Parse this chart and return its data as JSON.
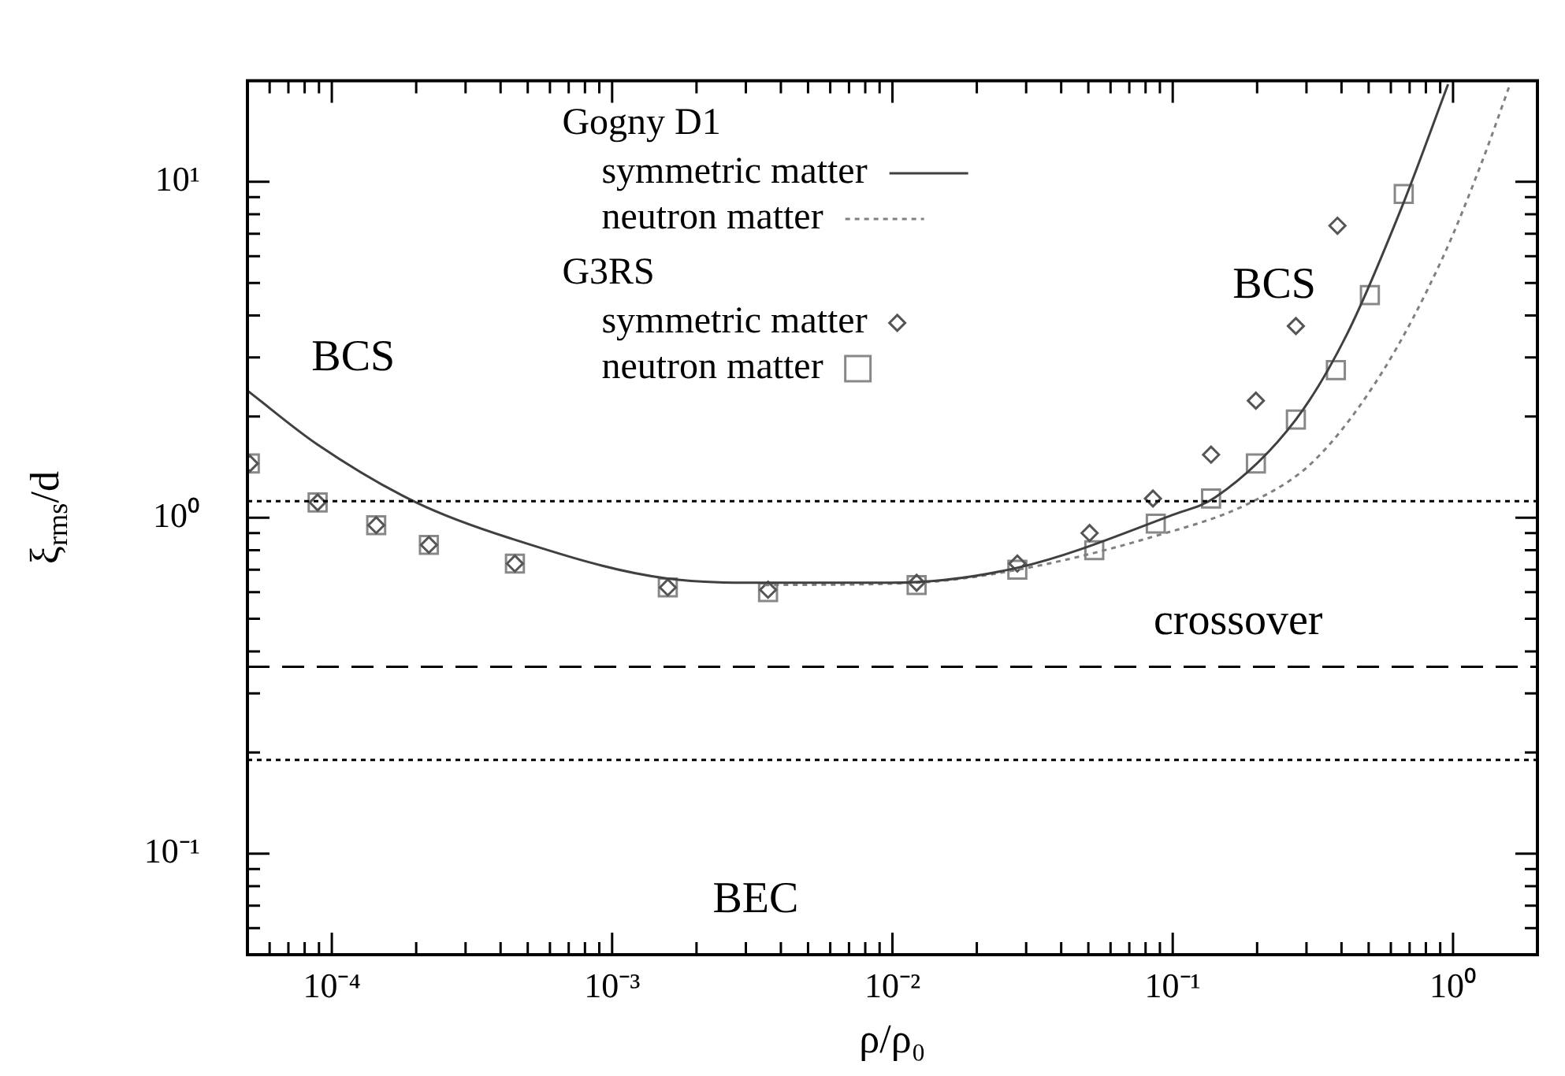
{
  "chart_data": {
    "type": "line",
    "xlabel": "ρ/ρ₀",
    "ylabel": "ξ$_{rms}$/d",
    "log": "xy",
    "grid": false,
    "legend": "top",
    "xlim": [
      5e-05,
      2
    ],
    "ylim": [
      0.05,
      20
    ],
    "xticks": [
      {
        "value": 5e-05,
        "label": null
      },
      {
        "value": 6e-05,
        "label": null
      },
      {
        "value": 7e-05,
        "label": null
      },
      {
        "value": 8e-05,
        "label": null
      },
      {
        "value": 9e-05,
        "label": null
      },
      {
        "value": 0.0001,
        "label": "10⁻⁴"
      },
      {
        "value": 0.0002,
        "label": null
      },
      {
        "value": 0.0003,
        "label": null
      },
      {
        "value": 0.0004,
        "label": null
      },
      {
        "value": 0.0005,
        "label": null
      },
      {
        "value": 0.0006,
        "label": null
      },
      {
        "value": 0.0007,
        "label": null
      },
      {
        "value": 0.0008,
        "label": null
      },
      {
        "value": 0.0009,
        "label": null
      },
      {
        "value": 0.001,
        "label": "10⁻³"
      },
      {
        "value": 0.002,
        "label": null
      },
      {
        "value": 0.003,
        "label": null
      },
      {
        "value": 0.004,
        "label": null
      },
      {
        "value": 0.005,
        "label": null
      },
      {
        "value": 0.006,
        "label": null
      },
      {
        "value": 0.007,
        "label": null
      },
      {
        "value": 0.008,
        "label": null
      },
      {
        "value": 0.009,
        "label": null
      },
      {
        "value": 0.01,
        "label": "10⁻²"
      },
      {
        "value": 0.02,
        "label": null
      },
      {
        "value": 0.03,
        "label": null
      },
      {
        "value": 0.04,
        "label": null
      },
      {
        "value": 0.05,
        "label": null
      },
      {
        "value": 0.06,
        "label": null
      },
      {
        "value": 0.07,
        "label": null
      },
      {
        "value": 0.08,
        "label": null
      },
      {
        "value": 0.09,
        "label": null
      },
      {
        "value": 0.1,
        "label": "10⁻¹"
      },
      {
        "value": 0.2,
        "label": null
      },
      {
        "value": 0.3,
        "label": null
      },
      {
        "value": 0.4,
        "label": null
      },
      {
        "value": 0.5,
        "label": null
      },
      {
        "value": 0.6,
        "label": null
      },
      {
        "value": 0.7,
        "label": null
      },
      {
        "value": 0.8,
        "label": null
      },
      {
        "value": 0.9,
        "label": null
      },
      {
        "value": 1,
        "label": "10⁰"
      },
      {
        "value": 2,
        "label": null
      }
    ],
    "yticks": [
      {
        "value": 0.05,
        "label": null
      },
      {
        "value": 0.06,
        "label": null
      },
      {
        "value": 0.07,
        "label": null
      },
      {
        "value": 0.08,
        "label": null
      },
      {
        "value": 0.09,
        "label": null
      },
      {
        "value": 0.1,
        "label": "10⁻¹"
      },
      {
        "value": 0.2,
        "label": null
      },
      {
        "value": 0.3,
        "label": null
      },
      {
        "value": 0.4,
        "label": null
      },
      {
        "value": 0.5,
        "label": null
      },
      {
        "value": 0.6,
        "label": null
      },
      {
        "value": 0.7,
        "label": null
      },
      {
        "value": 0.8,
        "label": null
      },
      {
        "value": 0.9,
        "label": null
      },
      {
        "value": 1,
        "label": "10⁰"
      },
      {
        "value": 2,
        "label": null
      },
      {
        "value": 3,
        "label": null
      },
      {
        "value": 4,
        "label": null
      },
      {
        "value": 5,
        "label": null
      },
      {
        "value": 6,
        "label": null
      },
      {
        "value": 7,
        "label": null
      },
      {
        "value": 8,
        "label": null
      },
      {
        "value": 9,
        "label": null
      },
      {
        "value": 10,
        "label": "10¹"
      },
      {
        "value": 20,
        "label": null
      }
    ],
    "ref_lines": [
      {
        "axis": "y",
        "value": 1.12,
        "line_style": "dotted",
        "color": "#000000"
      },
      {
        "axis": "y",
        "value": 0.36,
        "line_style": "dashed",
        "color": "#000000"
      },
      {
        "axis": "y",
        "value": 0.19,
        "line_style": "dotted",
        "color": "#000000"
      }
    ],
    "annotations": [
      "Gogny D1",
      "G3RS",
      "BCS",
      "BCS",
      "crossover",
      "BEC"
    ],
    "series": [
      {
        "name": "symmetric matter",
        "line_style": "solid",
        "marker": "none",
        "color": "#404040",
        "x": [
          5e-05,
          8.9e-05,
          0.0002,
          0.00043,
          0.00156,
          0.0037,
          0.0098,
          0.028,
          0.1,
          0.142,
          0.275,
          0.42,
          0.66,
          0.96
        ],
        "values": [
          2.39,
          1.65,
          1.11,
          0.87,
          0.66,
          0.64,
          0.64,
          0.71,
          1.02,
          1.15,
          1.96,
          3.54,
          8.5,
          19.5
        ]
      },
      {
        "name": "neutron matter",
        "line_style": "dotted",
        "marker": "none",
        "color": "#808080",
        "x": [
          0.0035,
          0.012,
          0.028,
          0.082,
          0.19,
          0.32,
          0.56,
          0.92,
          1.27,
          1.6
        ],
        "values": [
          0.63,
          0.64,
          0.7,
          0.87,
          1.11,
          1.48,
          2.72,
          5.96,
          11.5,
          19.6
        ]
      },
      {
        "name": "symmetric matter",
        "type": "scatter",
        "marker": "diamond",
        "color": "#555555",
        "x": [
          5.1e-05,
          8.9e-05,
          0.000144,
          0.000222,
          0.00045,
          0.00158,
          0.0036,
          0.0122,
          0.0279,
          0.0505,
          0.085,
          0.137,
          0.198,
          0.275,
          0.387
        ],
        "values": [
          1.45,
          1.11,
          0.95,
          0.83,
          0.73,
          0.62,
          0.61,
          0.64,
          0.73,
          0.9,
          1.14,
          1.54,
          2.23,
          3.72,
          7.4
        ]
      },
      {
        "name": "neutron matter",
        "type": "scatter",
        "marker": "square",
        "color": "#888888",
        "x": [
          5.1e-05,
          8.9e-05,
          0.000144,
          0.000222,
          0.00045,
          0.00158,
          0.0036,
          0.0122,
          0.0279,
          0.0525,
          0.087,
          0.137,
          0.198,
          0.275,
          0.382,
          0.505,
          0.667
        ],
        "values": [
          1.45,
          1.11,
          0.95,
          0.83,
          0.73,
          0.62,
          0.6,
          0.63,
          0.7,
          0.8,
          0.96,
          1.14,
          1.45,
          1.96,
          2.75,
          4.6,
          9.2
        ]
      }
    ]
  }
}
